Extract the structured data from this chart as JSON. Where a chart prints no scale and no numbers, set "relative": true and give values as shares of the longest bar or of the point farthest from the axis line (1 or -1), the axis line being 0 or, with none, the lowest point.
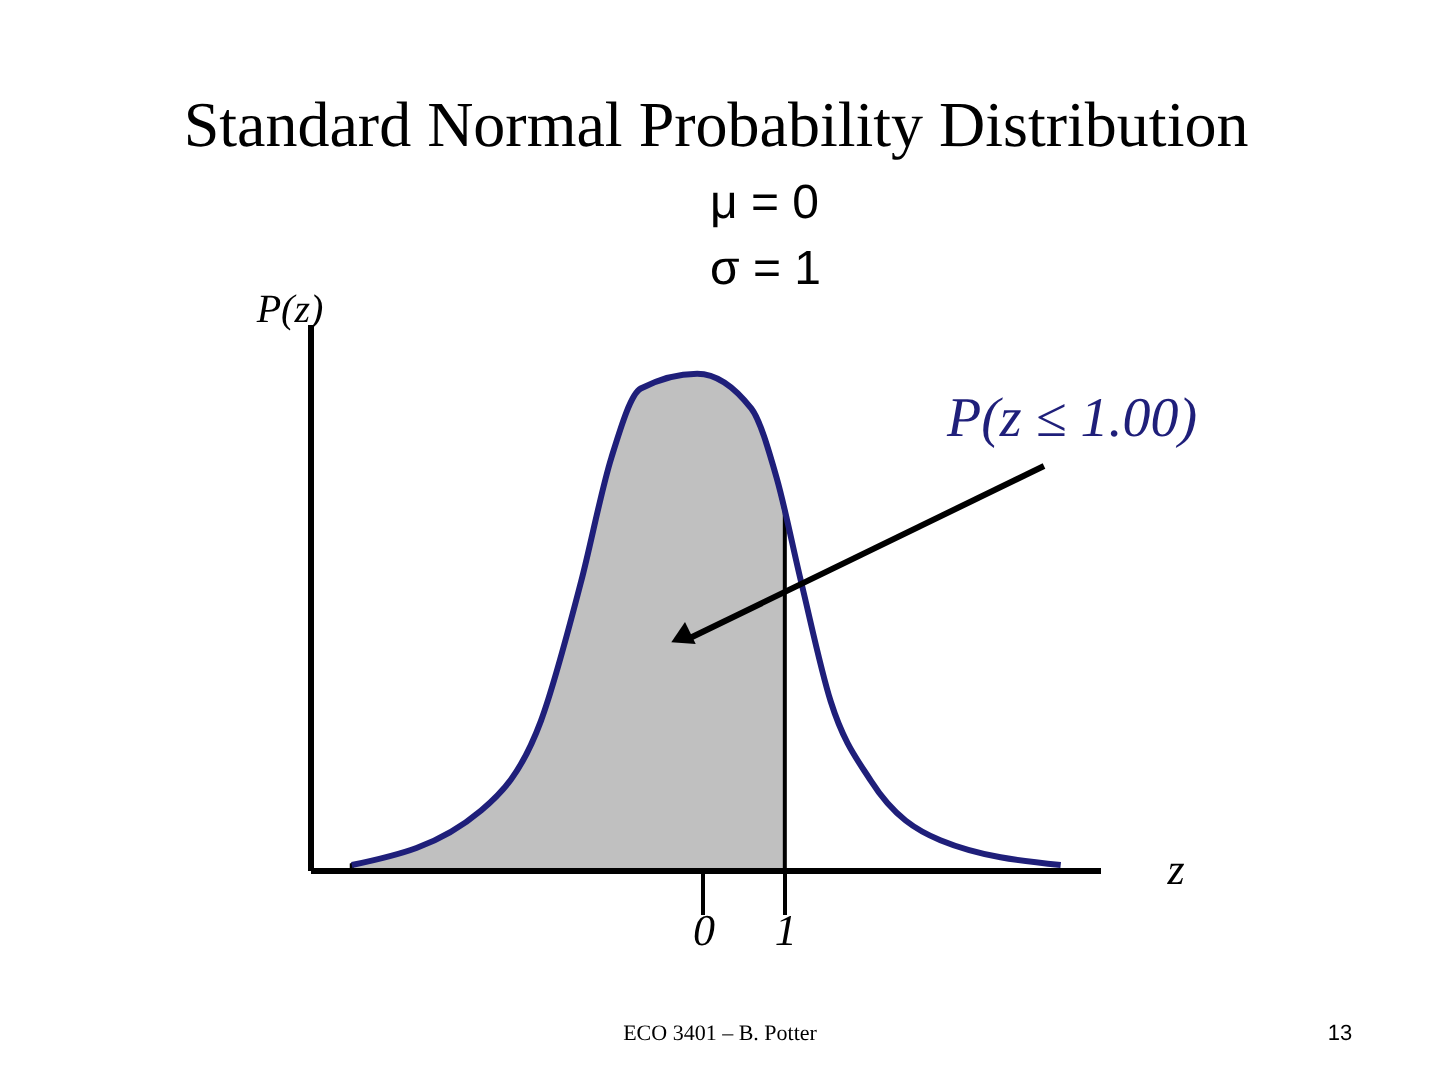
{
  "chart_data": {
    "type": "line",
    "title": "Standard Normal Probability Distribution",
    "xlabel": "z",
    "ylabel": "P(z)",
    "relative": true,
    "xlim": [
      -4.8,
      4.85
    ],
    "xticks": [
      0,
      1
    ],
    "grid": false,
    "marker": "none",
    "line_style": "solid",
    "annotations": [
      "μ = 0",
      "σ = 1",
      "P(z ≤ 1.00)",
      "ECO 3401 – B. Potter",
      "13"
    ],
    "series": [
      {
        "type": "area",
        "color": "#c0c0c0",
        "x": [
          -4.29,
          -2.71,
          -1.98,
          -1.49,
          -1.12,
          -0.76,
          -0.07,
          0.59,
          0.9,
          1.0
        ],
        "values": [
          0.01,
          0.12,
          0.3,
          0.58,
          0.83,
          0.97,
          1.0,
          0.93,
          0.79,
          0.72
        ]
      },
      {
        "color": "#1f1f7a",
        "x": [
          -4.29,
          -2.71,
          -1.98,
          -1.49,
          -1.12,
          -0.76,
          -0.07,
          0.59,
          0.9,
          1.2,
          1.56,
          2.05,
          2.9,
          4.37
        ],
        "values": [
          0.01,
          0.12,
          0.3,
          0.58,
          0.83,
          0.97,
          1.0,
          0.93,
          0.79,
          0.58,
          0.34,
          0.18,
          0.06,
          0.01
        ]
      }
    ]
  }
}
